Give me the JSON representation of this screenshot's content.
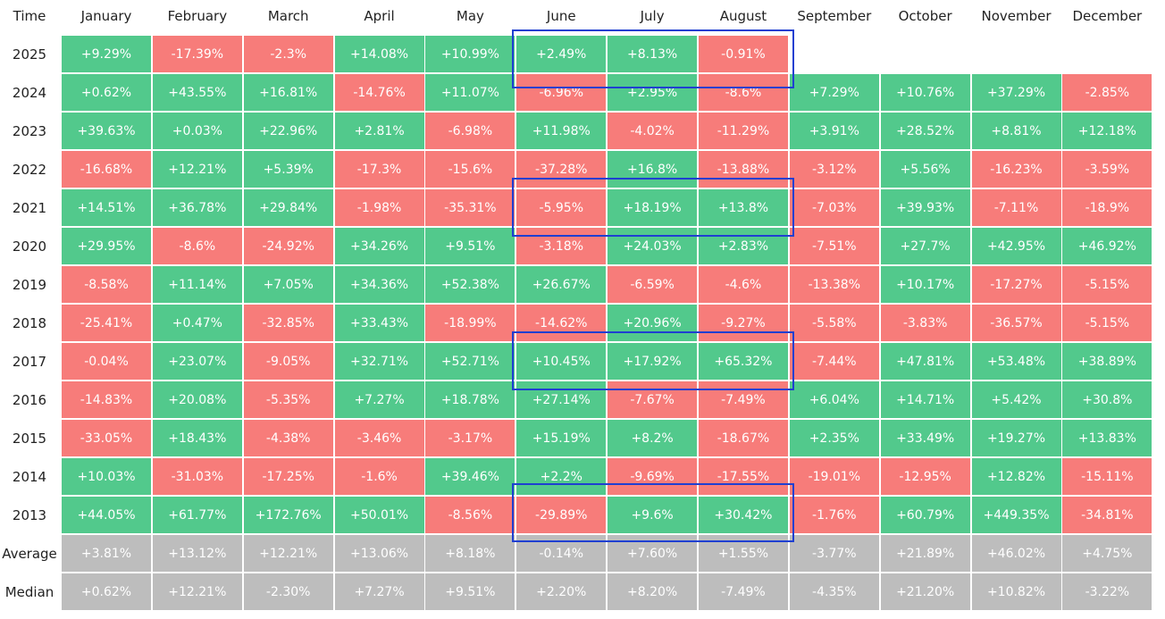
{
  "table": {
    "header": [
      "Time",
      "January",
      "February",
      "March",
      "April",
      "May",
      "June",
      "July",
      "August",
      "September",
      "October",
      "November",
      "December"
    ],
    "rows": [
      {
        "label": "2025",
        "cells": [
          "+9.29%",
          "-17.39%",
          "-2.3%",
          "+14.08%",
          "+10.99%",
          "+2.49%",
          "+8.13%",
          "-0.91%"
        ]
      },
      {
        "label": "2024",
        "cells": [
          "+0.62%",
          "+43.55%",
          "+16.81%",
          "-14.76%",
          "+11.07%",
          "-6.96%",
          "+2.95%",
          "-8.6%",
          "+7.29%",
          "+10.76%",
          "+37.29%",
          "-2.85%"
        ]
      },
      {
        "label": "2023",
        "cells": [
          "+39.63%",
          "+0.03%",
          "+22.96%",
          "+2.81%",
          "-6.98%",
          "+11.98%",
          "-4.02%",
          "-11.29%",
          "+3.91%",
          "+28.52%",
          "+8.81%",
          "+12.18%"
        ]
      },
      {
        "label": "2022",
        "cells": [
          "-16.68%",
          "+12.21%",
          "+5.39%",
          "-17.3%",
          "-15.6%",
          "-37.28%",
          "+16.8%",
          "-13.88%",
          "-3.12%",
          "+5.56%",
          "-16.23%",
          "-3.59%"
        ]
      },
      {
        "label": "2021",
        "cells": [
          "+14.51%",
          "+36.78%",
          "+29.84%",
          "-1.98%",
          "-35.31%",
          "-5.95%",
          "+18.19%",
          "+13.8%",
          "-7.03%",
          "+39.93%",
          "-7.11%",
          "-18.9%"
        ]
      },
      {
        "label": "2020",
        "cells": [
          "+29.95%",
          "-8.6%",
          "-24.92%",
          "+34.26%",
          "+9.51%",
          "-3.18%",
          "+24.03%",
          "+2.83%",
          "-7.51%",
          "+27.7%",
          "+42.95%",
          "+46.92%"
        ]
      },
      {
        "label": "2019",
        "cells": [
          "-8.58%",
          "+11.14%",
          "+7.05%",
          "+34.36%",
          "+52.38%",
          "+26.67%",
          "-6.59%",
          "-4.6%",
          "-13.38%",
          "+10.17%",
          "-17.27%",
          "-5.15%"
        ]
      },
      {
        "label": "2018",
        "cells": [
          "-25.41%",
          "+0.47%",
          "-32.85%",
          "+33.43%",
          "-18.99%",
          "-14.62%",
          "+20.96%",
          "-9.27%",
          "-5.58%",
          "-3.83%",
          "-36.57%",
          "-5.15%"
        ]
      },
      {
        "label": "2017",
        "cells": [
          "-0.04%",
          "+23.07%",
          "-9.05%",
          "+32.71%",
          "+52.71%",
          "+10.45%",
          "+17.92%",
          "+65.32%",
          "-7.44%",
          "+47.81%",
          "+53.48%",
          "+38.89%"
        ]
      },
      {
        "label": "2016",
        "cells": [
          "-14.83%",
          "+20.08%",
          "-5.35%",
          "+7.27%",
          "+18.78%",
          "+27.14%",
          "-7.67%",
          "-7.49%",
          "+6.04%",
          "+14.71%",
          "+5.42%",
          "+30.8%"
        ]
      },
      {
        "label": "2015",
        "cells": [
          "-33.05%",
          "+18.43%",
          "-4.38%",
          "-3.46%",
          "-3.17%",
          "+15.19%",
          "+8.2%",
          "-18.67%",
          "+2.35%",
          "+33.49%",
          "+19.27%",
          "+13.83%"
        ]
      },
      {
        "label": "2014",
        "cells": [
          "+10.03%",
          "-31.03%",
          "-17.25%",
          "-1.6%",
          "+39.46%",
          "+2.2%",
          "-9.69%",
          "-17.55%",
          "-19.01%",
          "-12.95%",
          "+12.82%",
          "-15.11%"
        ]
      },
      {
        "label": "2013",
        "cells": [
          "+44.05%",
          "+61.77%",
          "+172.76%",
          "+50.01%",
          "-8.56%",
          "-29.89%",
          "+9.6%",
          "+30.42%",
          "-1.76%",
          "+60.79%",
          "+449.35%",
          "-34.81%"
        ]
      }
    ],
    "summary_rows": [
      {
        "label": "Average",
        "cells": [
          "+3.81%",
          "+13.12%",
          "+12.21%",
          "+13.06%",
          "+8.18%",
          "-0.14%",
          "+7.60%",
          "+1.55%",
          "-3.77%",
          "+21.89%",
          "+46.02%",
          "+4.75%"
        ]
      },
      {
        "label": "Median",
        "cells": [
          "+0.62%",
          "+12.21%",
          "-2.30%",
          "+7.27%",
          "+9.51%",
          "+2.20%",
          "+8.20%",
          "-7.49%",
          "-4.35%",
          "+21.20%",
          "+10.82%",
          "-3.22%"
        ]
      }
    ]
  }
}
